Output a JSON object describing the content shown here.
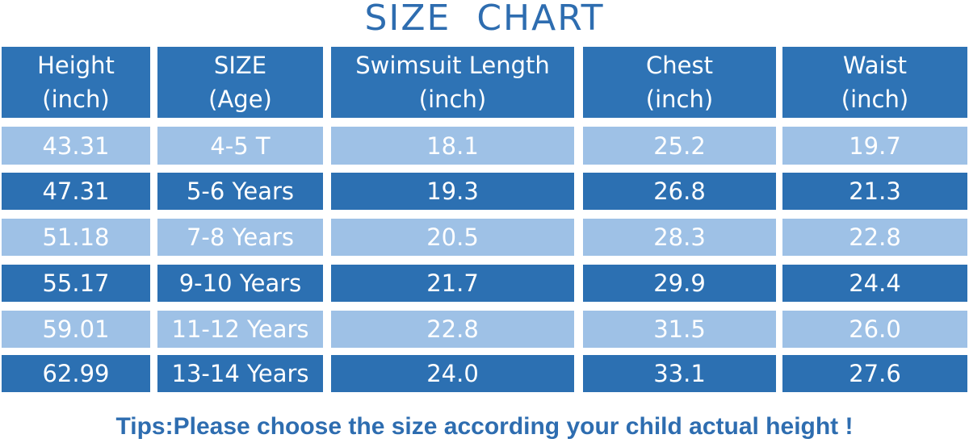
{
  "title": "SIZE  CHART",
  "table": {
    "headers": [
      {
        "line1": "Height",
        "line2": "(inch)"
      },
      {
        "line1": "SIZE",
        "line2": "(Age)"
      },
      {
        "line1": "Swimsuit Length",
        "line2": "(inch)"
      },
      {
        "line1": "Chest",
        "line2": "(inch)"
      },
      {
        "line1": "Waist",
        "line2": "(inch)"
      }
    ],
    "rows": [
      {
        "height": "43.31",
        "size": "4-5 T",
        "length": "18.1",
        "chest": "25.2",
        "waist": "19.7"
      },
      {
        "height": "47.31",
        "size": "5-6 Years",
        "length": "19.3",
        "chest": "26.8",
        "waist": "21.3"
      },
      {
        "height": "51.18",
        "size": "7-8 Years",
        "length": "20.5",
        "chest": "28.3",
        "waist": "22.8"
      },
      {
        "height": "55.17",
        "size": "9-10 Years",
        "length": "21.7",
        "chest": "29.9",
        "waist": "24.4"
      },
      {
        "height": "59.01",
        "size": "11-12 Years",
        "length": "22.8",
        "chest": "31.5",
        "waist": "26.0"
      },
      {
        "height": "62.99",
        "size": "13-14 Years",
        "length": "24.0",
        "chest": "33.1",
        "waist": "27.6"
      }
    ]
  },
  "tips": "Tips:Please choose the size according your child actual height !",
  "colors": {
    "header_bg": "#2e73b5",
    "row_light": "#9ec1e6",
    "row_dark": "#2c70b2",
    "title_text": "#2e6db0"
  }
}
